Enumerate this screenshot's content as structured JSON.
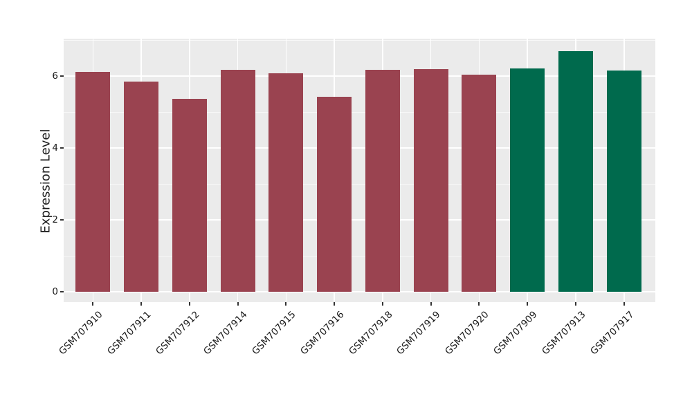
{
  "chart_data": {
    "type": "bar",
    "title": "",
    "xlabel": "",
    "ylabel": "Expression Level",
    "categories": [
      "GSM707910",
      "GSM707911",
      "GSM707912",
      "GSM707914",
      "GSM707915",
      "GSM707916",
      "GSM707918",
      "GSM707919",
      "GSM707920",
      "GSM707909",
      "GSM707913",
      "GSM707917"
    ],
    "values": [
      6.12,
      5.85,
      5.36,
      6.17,
      6.08,
      5.42,
      6.17,
      6.19,
      6.03,
      6.22,
      6.7,
      6.16
    ],
    "bar_colors": [
      "#9a4350",
      "#9a4350",
      "#9a4350",
      "#9a4350",
      "#9a4350",
      "#9a4350",
      "#9a4350",
      "#9a4350",
      "#9a4350",
      "#006a4d",
      "#006a4d",
      "#006a4d"
    ],
    "group_colors": {
      "maroon": "#9a4350",
      "green": "#006a4d"
    },
    "ylim": [
      0,
      7.04
    ],
    "yticks": [
      0,
      2,
      4,
      6
    ],
    "ytick_labels": [
      "0",
      "2",
      "4",
      "6"
    ],
    "yticks_minor": [
      1,
      3,
      5,
      7
    ],
    "x_tick_rotation": 45,
    "grid": true,
    "legend": "none",
    "panel_background": "#ebebeb",
    "gridline_color": "#ffffff",
    "tick_color": "#333333",
    "text_color": "#1a1a1a"
  }
}
